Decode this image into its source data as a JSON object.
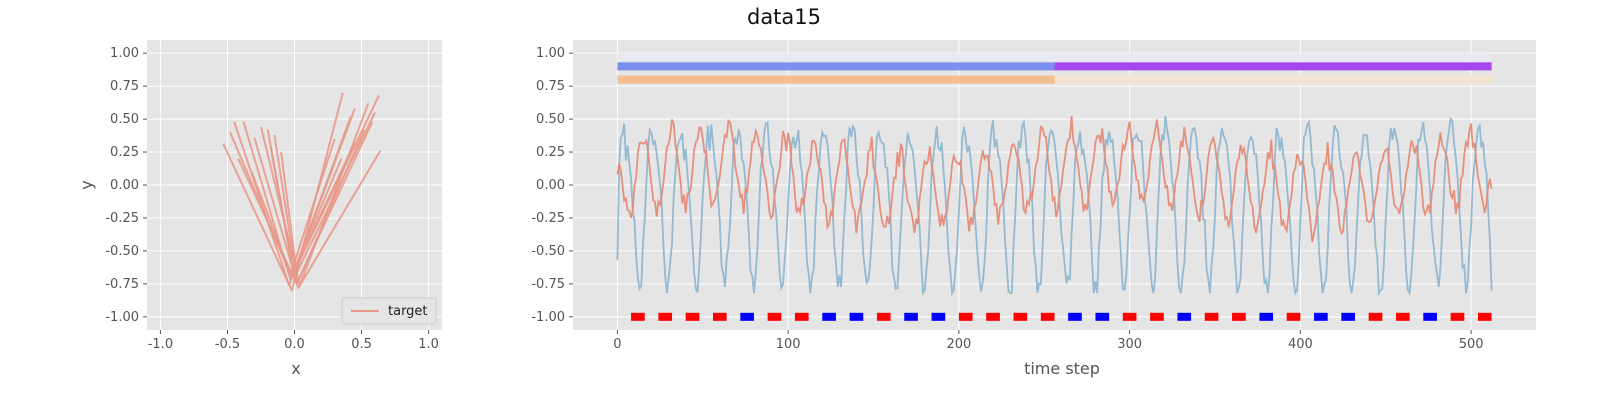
{
  "figure_title": "data15",
  "chart_data": [
    {
      "type": "line",
      "panel": "left",
      "xlabel": "x",
      "ylabel": "y",
      "xlim": [
        -1.1,
        1.1
      ],
      "ylim": [
        -1.1,
        1.1
      ],
      "xticks": [
        "-1.0",
        "-0.5",
        "0.0",
        "0.5",
        "1.0"
      ],
      "yticks": [
        "-1.00",
        "-0.75",
        "-0.50",
        "-0.25",
        "0.00",
        "0.25",
        "0.50",
        "0.75",
        "1.00"
      ],
      "legend": {
        "label": "target",
        "position": "lower-right"
      },
      "series": [
        {
          "name": "target",
          "color": "#e8998a",
          "segments": [
            [
              [
                -0.53,
                0.31
              ],
              [
                -0.02,
                -0.8
              ],
              [
                0.36,
                0.7
              ]
            ],
            [
              [
                -0.45,
                0.48
              ],
              [
                -0.04,
                -0.76
              ],
              [
                0.45,
                0.58
              ]
            ],
            [
              [
                -0.38,
                0.48
              ],
              [
                -0.03,
                -0.72
              ],
              [
                0.63,
                0.68
              ]
            ],
            [
              [
                -0.2,
                0.42
              ],
              [
                0.0,
                -0.7
              ],
              [
                0.6,
                0.55
              ]
            ],
            [
              [
                -0.3,
                0.36
              ],
              [
                0.02,
                -0.75
              ],
              [
                0.52,
                0.42
              ]
            ],
            [
              [
                -0.18,
                0.3
              ],
              [
                -0.01,
                -0.66
              ],
              [
                0.45,
                0.32
              ]
            ],
            [
              [
                -0.42,
                0.2
              ],
              [
                0.03,
                -0.78
              ],
              [
                0.64,
                0.26
              ]
            ],
            [
              [
                -0.1,
                0.25
              ],
              [
                0.01,
                -0.62
              ],
              [
                0.35,
                0.2
              ]
            ],
            [
              [
                -0.32,
                0.1
              ],
              [
                -0.02,
                -0.7
              ],
              [
                0.42,
                0.52
              ]
            ],
            [
              [
                -0.25,
                0.44
              ],
              [
                0.04,
                -0.76
              ],
              [
                0.55,
                0.62
              ]
            ],
            [
              [
                -0.48,
                0.4
              ],
              [
                -0.03,
                -0.68
              ],
              [
                0.3,
                0.35
              ]
            ],
            [
              [
                -0.15,
                0.38
              ],
              [
                0.02,
                -0.74
              ],
              [
                0.58,
                0.48
              ]
            ]
          ]
        }
      ]
    },
    {
      "type": "line",
      "panel": "right",
      "xlabel": "time step",
      "ylabel": "",
      "xlim": [
        -26,
        538
      ],
      "ylim": [
        -1.1,
        1.1
      ],
      "xticks": [
        "0",
        "100",
        "200",
        "300",
        "400",
        "500"
      ],
      "yticks": [
        "-1.00",
        "-0.75",
        "-0.50",
        "-0.25",
        "0.00",
        "0.25",
        "0.50",
        "0.75",
        "1.00"
      ],
      "series": [
        {
          "name": "blue signal",
          "color": "#8fb6d0",
          "period": 16.7,
          "amplitude": 0.58,
          "offset": -0.12,
          "start": -0.57,
          "end": -0.8
        },
        {
          "name": "red signal",
          "color": "#e58b78",
          "period": 16.7,
          "amplitude": 0.28,
          "offset": 0.05,
          "start": 0.08,
          "end": -0.03
        }
      ],
      "bars": [
        {
          "name": "bar-1",
          "y": 0.97,
          "segments": [
            {
              "x0": 0,
              "x1": 512,
              "color": "#e7eaf3"
            }
          ]
        },
        {
          "name": "bar-2",
          "y": 0.9,
          "segments": [
            {
              "x0": 0,
              "x1": 256,
              "color": "#7a8ff0"
            },
            {
              "x0": 256,
              "x1": 512,
              "color": "#a746ec"
            }
          ]
        },
        {
          "name": "bar-3",
          "y": 0.8,
          "segments": [
            {
              "x0": 0,
              "x1": 256,
              "color": "#f5be90"
            },
            {
              "x0": 256,
              "x1": 512,
              "color": "#f4e4d4"
            }
          ]
        }
      ],
      "markers": {
        "y": -1.0,
        "start": 8,
        "step": 16,
        "width": 8,
        "colors": [
          "red",
          "red",
          "red",
          "red",
          "blue",
          "red",
          "red",
          "blue",
          "blue",
          "red",
          "blue",
          "blue",
          "red",
          "red",
          "red",
          "red",
          "blue",
          "blue",
          "red",
          "red",
          "blue",
          "red",
          "red",
          "blue",
          "red",
          "blue",
          "blue",
          "red",
          "red",
          "blue",
          "red",
          "red"
        ]
      }
    }
  ]
}
